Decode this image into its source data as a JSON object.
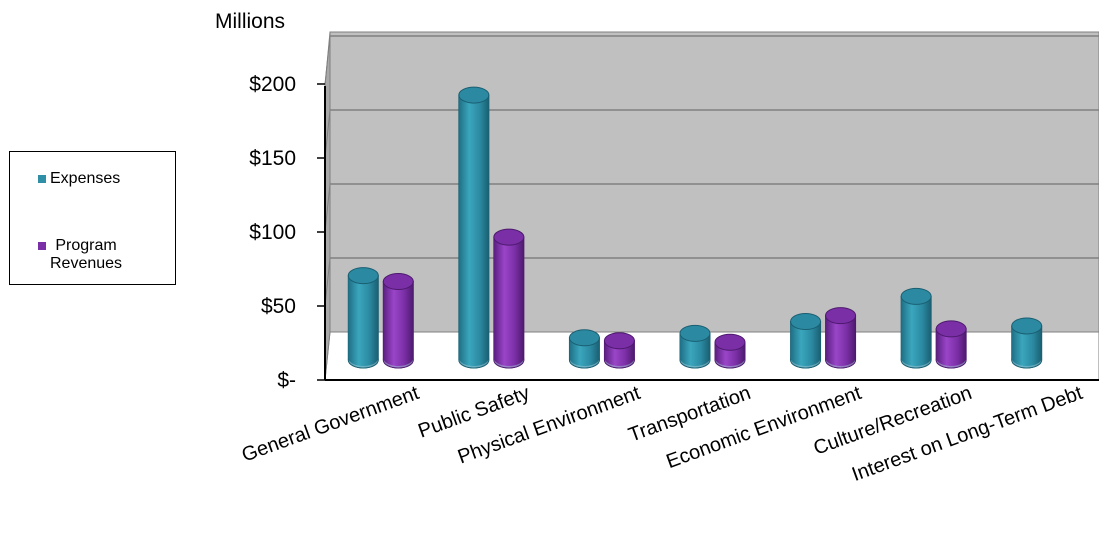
{
  "chart_data": {
    "type": "bar",
    "ylabel": "Millions",
    "ylim": [
      0,
      200
    ],
    "yticks": [
      "$-",
      "$50",
      "$100",
      "$150",
      "$200"
    ],
    "categories": [
      "General Government",
      "Public Safety",
      "Physical Environment",
      "Transportation",
      "Economic Environment",
      "Culture/Recreation",
      "Interest on Long-Term Debt"
    ],
    "series": [
      {
        "name": "Expenses",
        "color": "#2E8FA6",
        "values": [
          57,
          179,
          15,
          18,
          26,
          43,
          23
        ]
      },
      {
        "name": "Program Revenues",
        "color": "#7B2FA6",
        "values": [
          53,
          83,
          13,
          12,
          30,
          21,
          null
        ]
      }
    ],
    "grid": true,
    "legend": "left",
    "plot_background": "#C0C0C0"
  },
  "legend": {
    "items": [
      {
        "label": "Expenses",
        "color": "#2E8FA6"
      },
      {
        "label": "Program\nRevenues",
        "color": "#7B2FA6"
      }
    ]
  }
}
